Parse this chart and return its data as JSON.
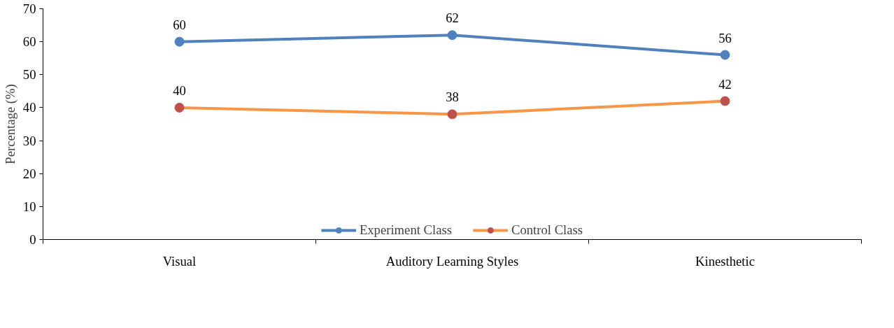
{
  "chart_data": {
    "type": "line",
    "ylabel": "Percentage (%)",
    "categories": [
      "Visual",
      "Auditory Learning Styles",
      "Kinesthetic"
    ],
    "series": [
      {
        "name": "Experiment Class",
        "color": "#4f81bd",
        "values": [
          60,
          62,
          56
        ]
      },
      {
        "name": "Control Class",
        "color": "#f79646",
        "colors": [
          "#c0504d",
          "#c0504d",
          "#c0504d"
        ],
        "values": [
          40,
          38,
          42
        ]
      }
    ],
    "ylim": [
      0,
      70
    ],
    "yticks": [
      0,
      10,
      20,
      30,
      40,
      50,
      60,
      70
    ],
    "grid": false,
    "legend": "bottom",
    "marker": "circle",
    "line_style": "solid",
    "data_labels": true
  }
}
